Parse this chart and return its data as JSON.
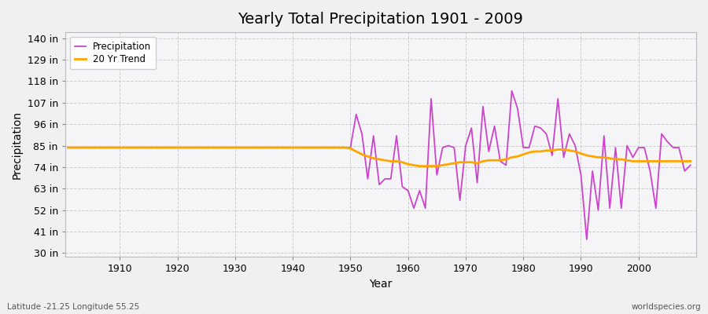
{
  "title": "Yearly Total Precipitation 1901 - 2009",
  "xlabel": "Year",
  "ylabel": "Precipitation",
  "footer_left": "Latitude -21.25 Longitude 55.25",
  "footer_right": "worldspecies.org",
  "yticks": [
    30,
    41,
    52,
    63,
    74,
    85,
    96,
    107,
    118,
    129,
    140
  ],
  "ytick_labels": [
    "30 in",
    "41 in",
    "52 in",
    "63 in",
    "74 in",
    "85 in",
    "96 in",
    "107 in",
    "118 in",
    "129 in",
    "140 in"
  ],
  "ylim": [
    28,
    143
  ],
  "xlim": [
    1900.5,
    2010
  ],
  "precip_color": "#CC44CC",
  "trend_color": "#FFA500",
  "bg_color": "#F0F0F0",
  "plot_bg_color": "#F5F5F7",
  "grid_color": "#CCCCCC",
  "xticks": [
    1910,
    1920,
    1930,
    1940,
    1950,
    1960,
    1970,
    1980,
    1990,
    2000
  ],
  "years": [
    1901,
    1902,
    1903,
    1904,
    1905,
    1906,
    1907,
    1908,
    1909,
    1910,
    1911,
    1912,
    1913,
    1914,
    1915,
    1916,
    1917,
    1918,
    1919,
    1920,
    1921,
    1922,
    1923,
    1924,
    1925,
    1926,
    1927,
    1928,
    1929,
    1930,
    1931,
    1932,
    1933,
    1934,
    1935,
    1936,
    1937,
    1938,
    1939,
    1940,
    1941,
    1942,
    1943,
    1944,
    1945,
    1946,
    1947,
    1948,
    1949,
    1950,
    1951,
    1952,
    1953,
    1954,
    1955,
    1956,
    1957,
    1958,
    1959,
    1960,
    1961,
    1962,
    1963,
    1964,
    1965,
    1966,
    1967,
    1968,
    1969,
    1970,
    1971,
    1972,
    1973,
    1974,
    1975,
    1976,
    1977,
    1978,
    1979,
    1980,
    1981,
    1982,
    1983,
    1984,
    1985,
    1986,
    1987,
    1988,
    1989,
    1990,
    1991,
    1992,
    1993,
    1994,
    1995,
    1996,
    1997,
    1998,
    1999,
    2000,
    2001,
    2002,
    2003,
    2004,
    2005,
    2006,
    2007,
    2008,
    2009
  ],
  "precip": [
    84,
    84,
    84,
    84,
    84,
    84,
    84,
    84,
    84,
    84,
    84,
    84,
    84,
    84,
    84,
    84,
    84,
    84,
    84,
    84,
    84,
    84,
    84,
    84,
    84,
    84,
    84,
    84,
    84,
    84,
    84,
    84,
    84,
    84,
    84,
    84,
    84,
    84,
    84,
    84,
    84,
    84,
    84,
    84,
    84,
    84,
    84,
    84,
    84,
    84,
    101,
    91,
    68,
    90,
    65,
    68,
    68,
    90,
    64,
    62,
    53,
    62,
    53,
    109,
    70,
    84,
    85,
    84,
    57,
    85,
    94,
    66,
    105,
    82,
    95,
    77,
    75,
    113,
    104,
    84,
    84,
    95,
    94,
    91,
    80,
    109,
    79,
    91,
    85,
    70,
    37,
    72,
    52,
    90,
    53,
    84,
    53,
    85,
    79,
    84,
    84,
    72,
    53,
    91,
    87,
    84,
    84,
    72,
    75
  ],
  "trend": [
    84,
    84,
    84,
    84,
    84,
    84,
    84,
    84,
    84,
    84,
    84,
    84,
    84,
    84,
    84,
    84,
    84,
    84,
    84,
    84,
    84,
    84,
    84,
    84,
    84,
    84,
    84,
    84,
    84,
    84,
    84,
    84,
    84,
    84,
    84,
    84,
    84,
    84,
    84,
    84,
    84,
    84,
    84,
    84,
    84,
    84,
    84,
    84,
    84,
    83.5,
    82,
    80.5,
    79.5,
    78.5,
    78,
    77.5,
    77,
    77,
    76.5,
    75.5,
    75,
    74.5,
    74.5,
    74.5,
    74.5,
    75,
    75.5,
    76,
    76.5,
    76.5,
    76.5,
    76,
    77,
    77.5,
    77.5,
    77.5,
    78,
    79,
    79.5,
    80.5,
    81.5,
    82,
    82,
    82.5,
    82.5,
    83,
    83,
    82.5,
    82,
    81,
    80,
    79.5,
    79,
    79,
    78.5,
    78,
    78,
    77.5,
    77,
    77,
    77,
    77,
    77,
    77,
    77,
    77,
    77,
    77,
    77
  ]
}
